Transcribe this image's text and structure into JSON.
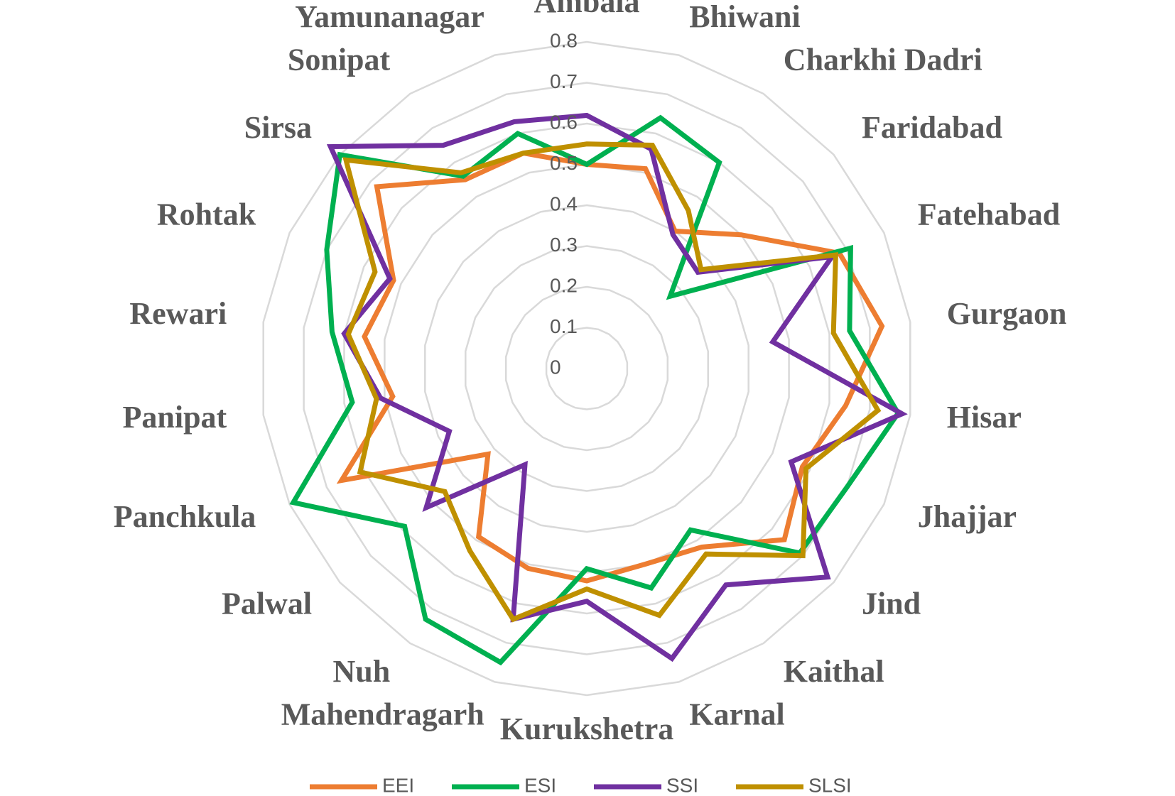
{
  "chart_data": {
    "type": "radar",
    "categories": [
      "Ambala",
      "Bhiwani",
      "Charkhi Dadri",
      "Faridabad",
      "Fatehabad",
      "Gurgaon",
      "Hisar",
      "Jhajjar",
      "Jind",
      "Kaithal",
      "Karnal",
      "Kurukshetra",
      "Mahendragarh",
      "Nuh",
      "Palwal",
      "Panchkula",
      "Panipat",
      "Rewari",
      "Rohtak",
      "Sirsa",
      "Sonipat",
      "Yamunanagar"
    ],
    "series": [
      {
        "name": "EEI",
        "color": "#ED7D31",
        "values": [
          0.5,
          0.51,
          0.4,
          0.5,
          0.68,
          0.73,
          0.64,
          0.58,
          0.64,
          0.52,
          0.5,
          0.52,
          0.51,
          0.49,
          0.32,
          0.66,
          0.48,
          0.55,
          0.52,
          0.68,
          0.55,
          0.55
        ]
      },
      {
        "name": "ESI",
        "color": "#00B050",
        "values": [
          0.5,
          0.64,
          0.6,
          0.27,
          0.71,
          0.65,
          0.77,
          0.7,
          0.69,
          0.47,
          0.56,
          0.49,
          0.75,
          0.73,
          0.59,
          0.79,
          0.58,
          0.63,
          0.7,
          0.8,
          0.56,
          0.6
        ]
      },
      {
        "name": "SSI",
        "color": "#7030A0",
        "values": [
          0.62,
          0.56,
          0.39,
          0.36,
          0.66,
          0.46,
          0.78,
          0.55,
          0.78,
          0.63,
          0.74,
          0.57,
          0.64,
          0.28,
          0.52,
          0.37,
          0.51,
          0.6,
          0.53,
          0.83,
          0.65,
          0.63
        ]
      },
      {
        "name": "SLSI",
        "color": "#BF9000",
        "values": [
          0.55,
          0.57,
          0.46,
          0.37,
          0.67,
          0.61,
          0.72,
          0.59,
          0.7,
          0.54,
          0.63,
          0.54,
          0.64,
          0.53,
          0.46,
          0.61,
          0.52,
          0.59,
          0.57,
          0.78,
          0.57,
          0.55
        ]
      }
    ],
    "ylim": [
      0,
      0.8
    ],
    "yticks": [
      0,
      0.1,
      0.2,
      0.3,
      0.4,
      0.5,
      0.6,
      0.7,
      0.8
    ],
    "grid": true,
    "legend": "bottom"
  }
}
